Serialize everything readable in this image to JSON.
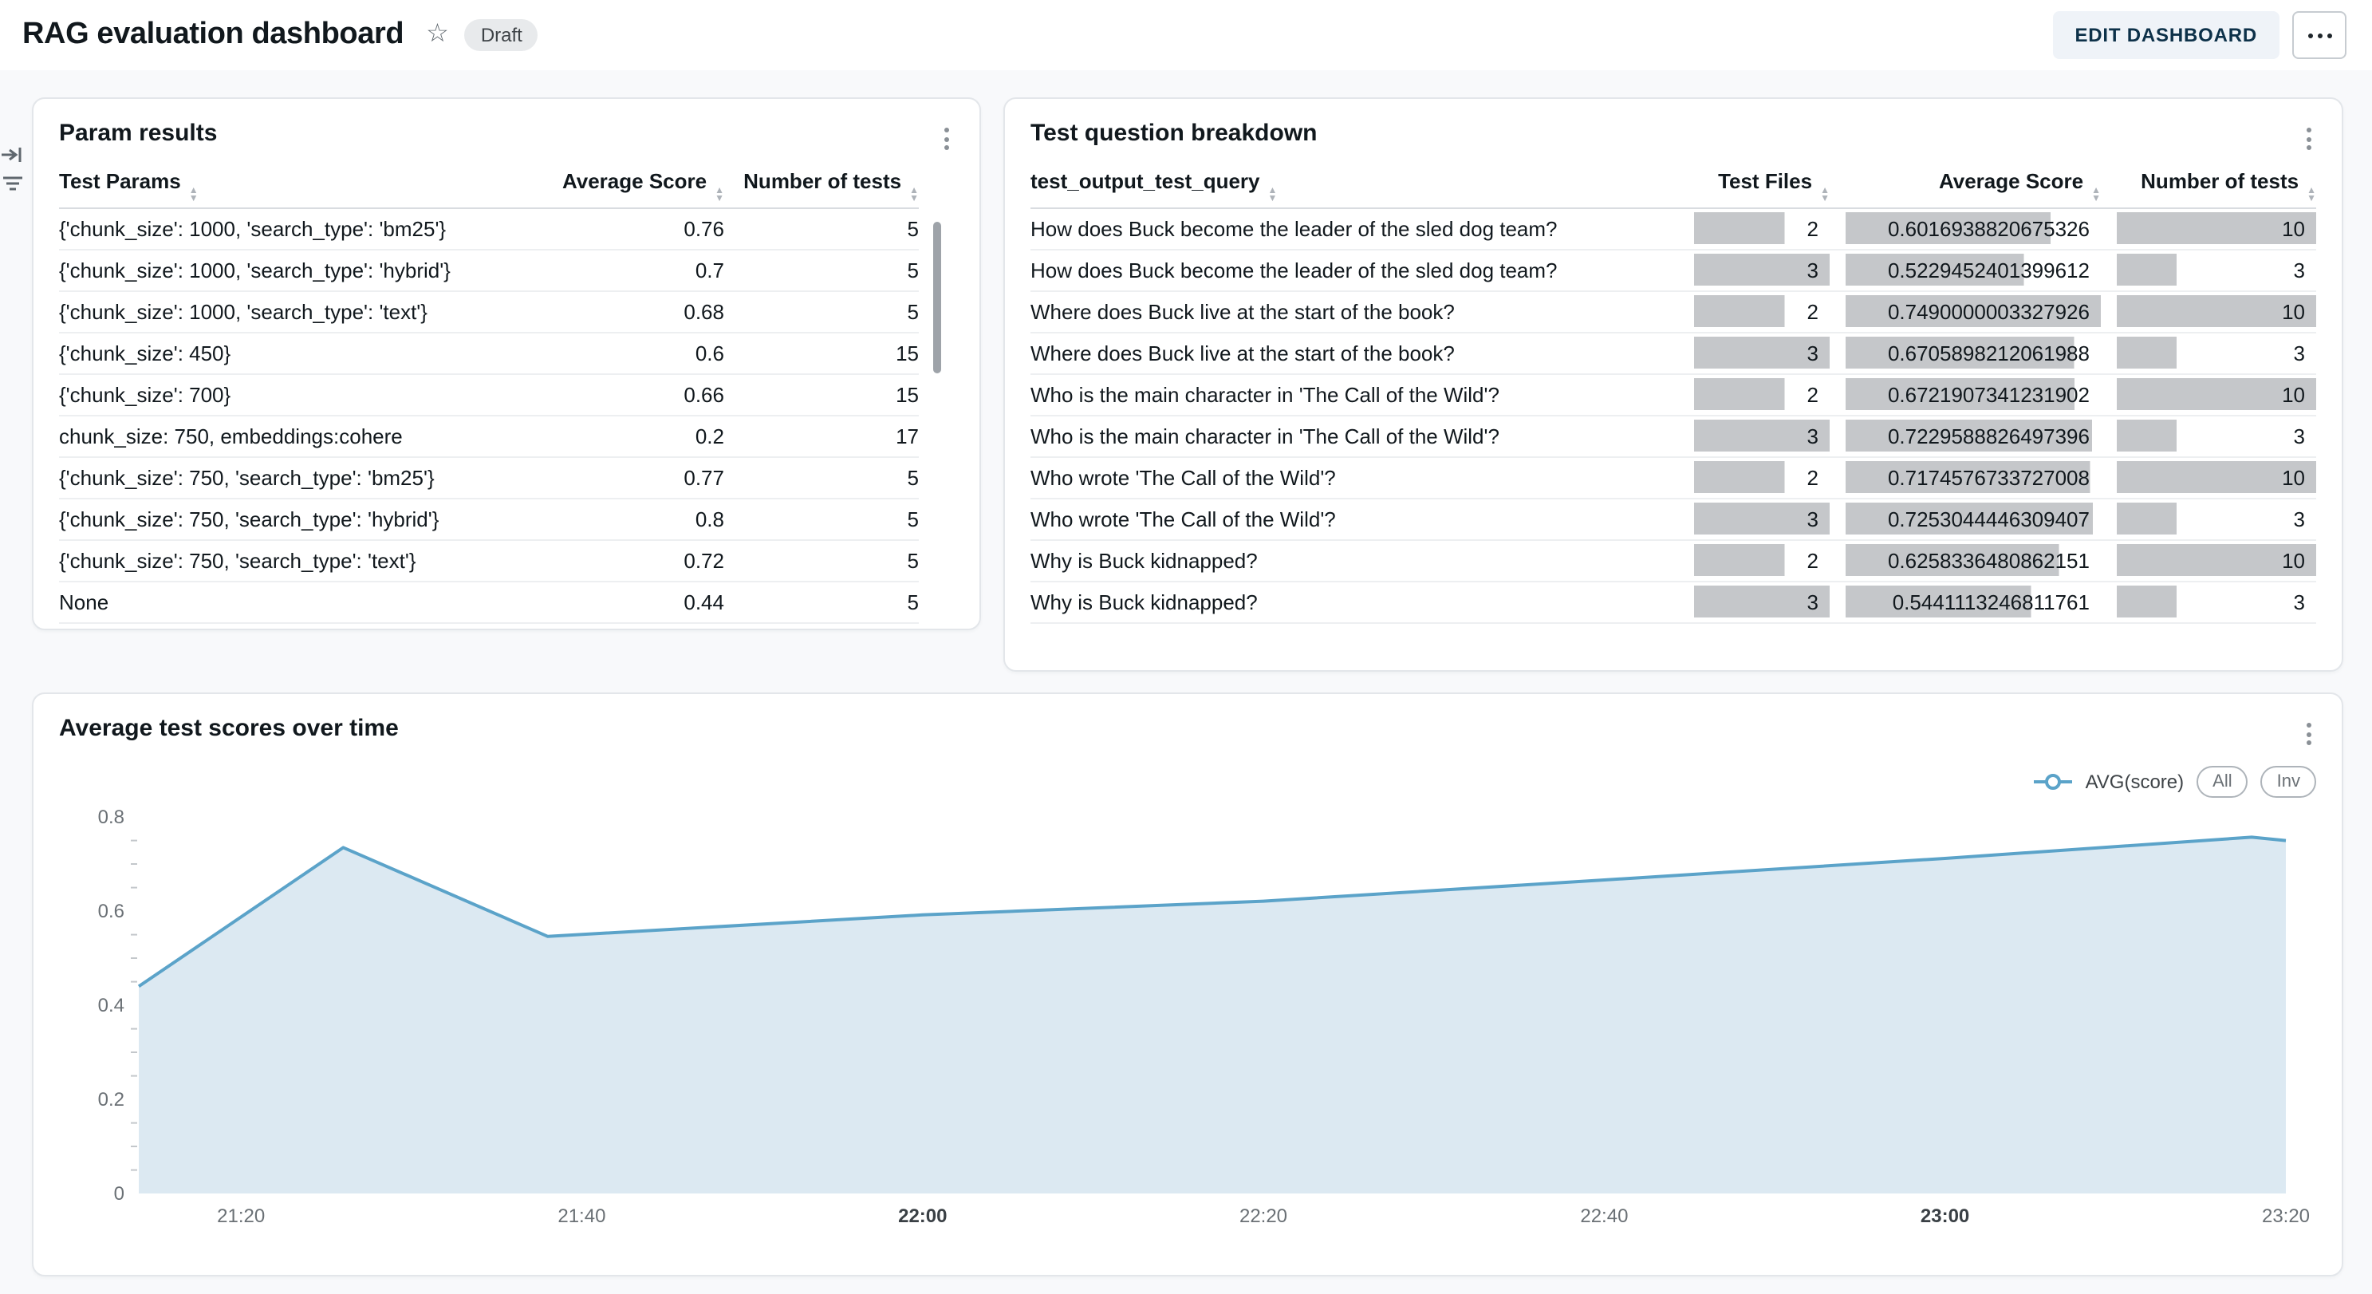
{
  "header": {
    "title": "RAG evaluation dashboard",
    "status_badge": "Draft",
    "star_icon": "star-outline",
    "edit_button_label": "EDIT DASHBOARD",
    "more_menu_icon": "horizontal-ellipsis"
  },
  "side_rail": {
    "collapse_icon": "collapse-panel",
    "filter_icon": "filter"
  },
  "cards": {
    "param_results": {
      "title": "Param results",
      "columns": [
        "Test Params",
        "Average Score",
        "Number of tests"
      ],
      "rows": [
        [
          "{'chunk_size': 1000, 'search_type': 'bm25'}",
          "0.76",
          "5"
        ],
        [
          "{'chunk_size': 1000, 'search_type': 'hybrid'}",
          "0.7",
          "5"
        ],
        [
          "{'chunk_size': 1000, 'search_type': 'text'}",
          "0.68",
          "5"
        ],
        [
          "{'chunk_size': 450}",
          "0.6",
          "15"
        ],
        [
          "{'chunk_size': 700}",
          "0.66",
          "15"
        ],
        [
          "chunk_size: 750, embeddings:cohere",
          "0.2",
          "17"
        ],
        [
          "{'chunk_size': 750, 'search_type': 'bm25'}",
          "0.77",
          "5"
        ],
        [
          "{'chunk_size': 750, 'search_type': 'hybrid'}",
          "0.8",
          "5"
        ],
        [
          "{'chunk_size': 750, 'search_type': 'text'}",
          "0.72",
          "5"
        ],
        [
          "None",
          "0.44",
          "5"
        ]
      ]
    },
    "question_breakdown": {
      "title": "Test question breakdown",
      "columns": [
        "test_output_test_query",
        "Test Files",
        "Average Score",
        "Number of tests"
      ],
      "bar_color": "#C5C7CA",
      "bar_max": {
        "test_files": 3,
        "avg_score": 0.7490000003327926,
        "num_tests": 10
      },
      "rows": [
        {
          "query": "How does Buck become the leader of the sled dog team?",
          "test_files": "2",
          "avg_score": "0.6016938820675326",
          "num_tests": "10"
        },
        {
          "query": "How does Buck become the leader of the sled dog team?",
          "test_files": "3",
          "avg_score": "0.5229452401399612",
          "num_tests": "3"
        },
        {
          "query": "Where does Buck live at the start of the book?",
          "test_files": "2",
          "avg_score": "0.7490000003327926",
          "num_tests": "10"
        },
        {
          "query": "Where does Buck live at the start of the book?",
          "test_files": "3",
          "avg_score": "0.6705898212061988",
          "num_tests": "3"
        },
        {
          "query": "Who is the main character in 'The Call of the Wild'?",
          "test_files": "2",
          "avg_score": "0.6721907341231902",
          "num_tests": "10"
        },
        {
          "query": "Who is the main character in 'The Call of the Wild'?",
          "test_files": "3",
          "avg_score": "0.7229588826497396",
          "num_tests": "3"
        },
        {
          "query": "Who wrote 'The Call of the Wild'?",
          "test_files": "2",
          "avg_score": "0.7174576733727008",
          "num_tests": "10"
        },
        {
          "query": "Who wrote 'The Call of the Wild'?",
          "test_files": "3",
          "avg_score": "0.7253044446309407",
          "num_tests": "3"
        },
        {
          "query": "Why is Buck kidnapped?",
          "test_files": "2",
          "avg_score": "0.6258336480862151",
          "num_tests": "10"
        },
        {
          "query": "Why is Buck kidnapped?",
          "test_files": "3",
          "avg_score": "0.5441113246811761",
          "num_tests": "3"
        }
      ]
    }
  },
  "chart_data": {
    "type": "area",
    "title": "Average test scores over time",
    "legend": {
      "series_label": "AVG(score)",
      "buttons": [
        "All",
        "Inv"
      ]
    },
    "points": [
      {
        "t": "21:14",
        "v": 0.44
      },
      {
        "t": "21:26",
        "v": 0.735
      },
      {
        "t": "21:38",
        "v": 0.546
      },
      {
        "t": "22:00",
        "v": 0.592
      },
      {
        "t": "22:20",
        "v": 0.621
      },
      {
        "t": "22:40",
        "v": 0.666
      },
      {
        "t": "23:00",
        "v": 0.712
      },
      {
        "t": "23:18",
        "v": 0.757
      },
      {
        "t": "23:20",
        "v": 0.75
      }
    ],
    "x_ticks": [
      {
        "label": "21:20",
        "bold": false
      },
      {
        "label": "21:40",
        "bold": false
      },
      {
        "label": "22:00",
        "bold": true
      },
      {
        "label": "22:20",
        "bold": false
      },
      {
        "label": "22:40",
        "bold": false
      },
      {
        "label": "23:00",
        "bold": true
      },
      {
        "label": "23:20",
        "bold": false
      }
    ],
    "y_ticks": [
      0,
      0.2,
      0.4,
      0.6,
      0.8
    ],
    "y_minor_step": 0.05,
    "ylim": [
      0,
      0.8
    ],
    "xlabel": "",
    "ylabel": "",
    "grid": false,
    "legend_position": "top-right",
    "colors": {
      "line": "#5BA3C9",
      "fill": "#DCE9F2"
    }
  }
}
